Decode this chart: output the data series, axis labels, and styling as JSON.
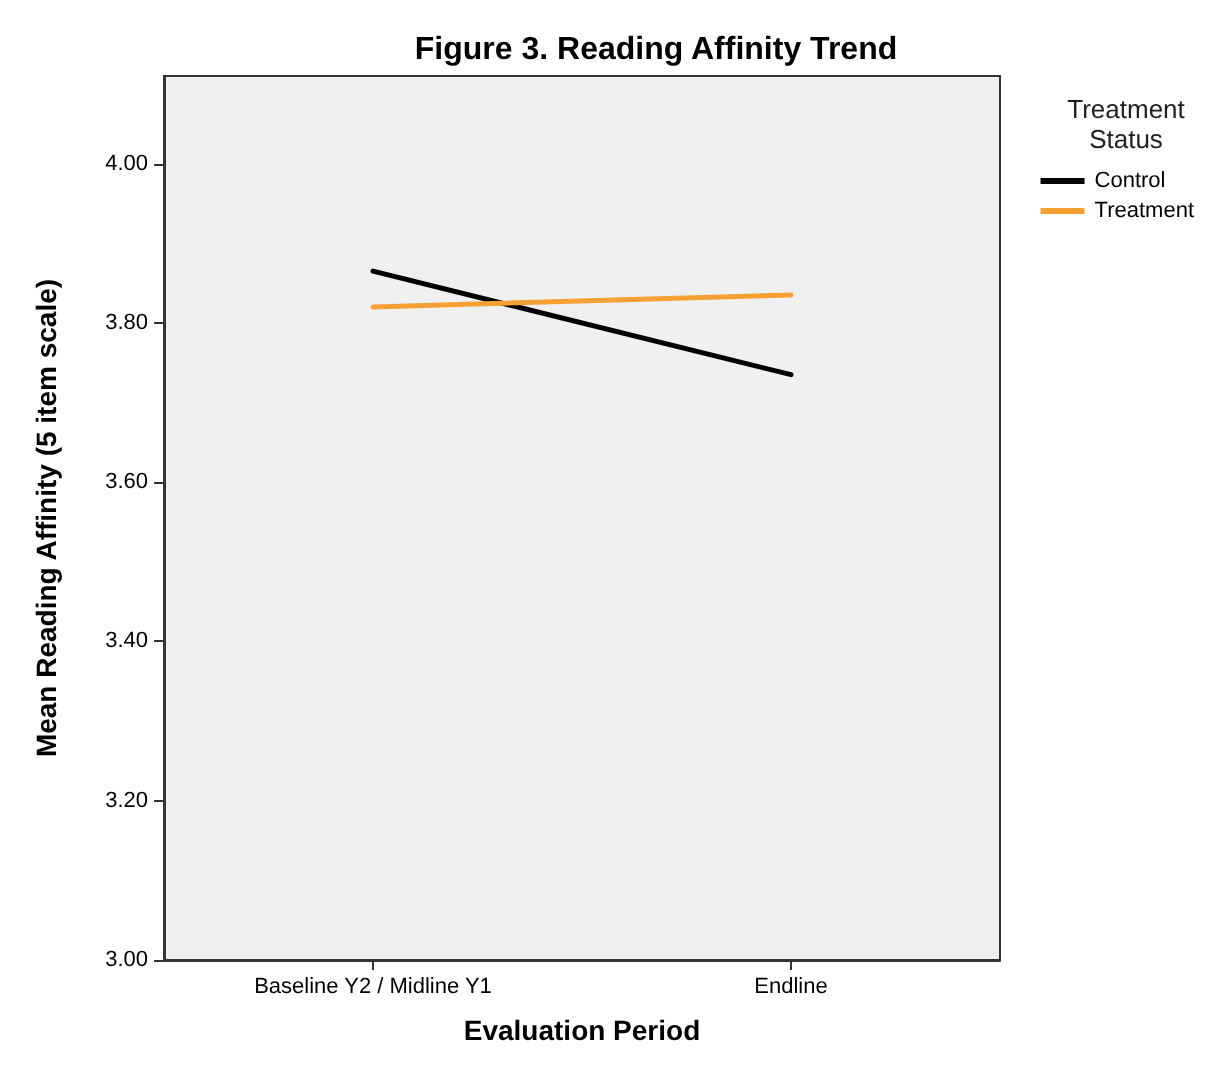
{
  "chart_data": {
    "type": "line",
    "title": "Figure 3. Reading Affinity Trend",
    "xlabel": "Evaluation Period",
    "ylabel": "Mean Reading Affinity (5 item scale)",
    "legend_title": "Treatment\nStatus",
    "categories": [
      "Baseline Y2 / Midline Y1",
      "Endline"
    ],
    "series": [
      {
        "name": "Control",
        "color": "#000000",
        "values": [
          3.865,
          3.735
        ]
      },
      {
        "name": "Treatment",
        "color": "#f5a033",
        "values": [
          3.82,
          3.835
        ]
      }
    ],
    "ylim": [
      3.0,
      4.11
    ],
    "yticks": [
      {
        "value": 3,
        "label": "3.00"
      },
      {
        "value": 3.2,
        "label": "3.20"
      },
      {
        "value": 3.4,
        "label": "3.40"
      },
      {
        "value": 3.6,
        "label": "3.60"
      },
      {
        "value": 3.8,
        "label": "3.80"
      },
      {
        "value": 4,
        "label": "4.00"
      }
    ],
    "grid": false,
    "legend": "top right",
    "marker": "none",
    "line_style": "solid"
  }
}
